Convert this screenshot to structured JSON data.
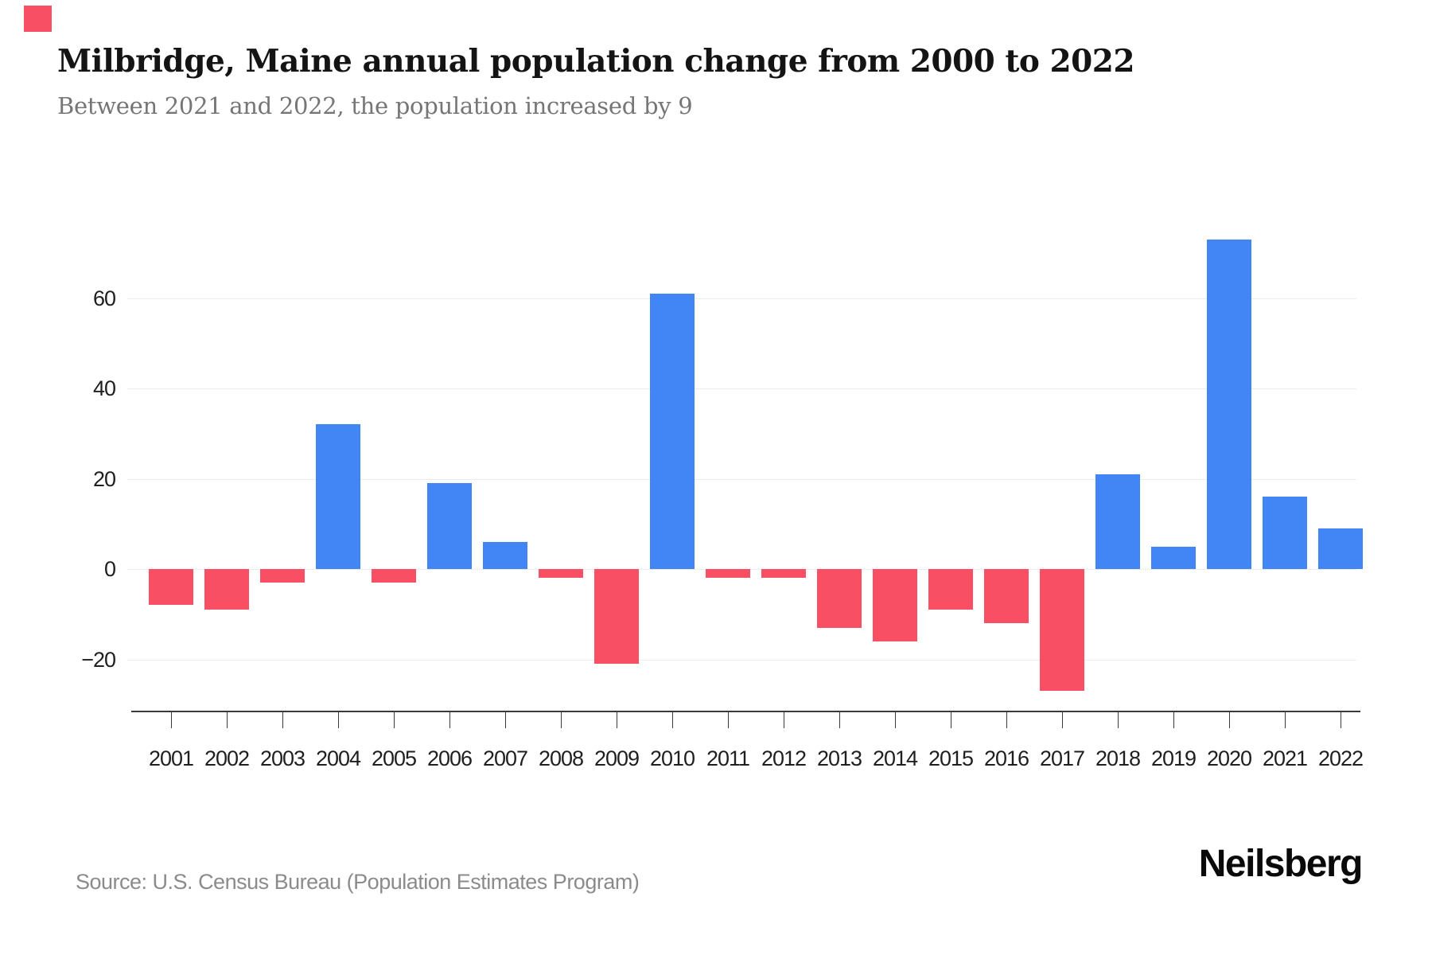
{
  "brand": {
    "logo_text": "Neilsberg",
    "accent_square_color": "#f84f64"
  },
  "header": {
    "title": "Milbridge, Maine annual population change from 2000 to 2022",
    "subtitle": "Between 2021 and 2022, the population increased by 9"
  },
  "source": {
    "text": "Source: U.S. Census Bureau (Population Estimates Program)"
  },
  "chart_data": {
    "type": "bar",
    "title": "Milbridge, Maine annual population change from 2000 to 2022",
    "subtitle": "Between 2021 and 2022, the population increased by 9",
    "xlabel": "",
    "ylabel": "",
    "categories": [
      "2001",
      "2002",
      "2003",
      "2004",
      "2005",
      "2006",
      "2007",
      "2008",
      "2009",
      "2010",
      "2011",
      "2012",
      "2013",
      "2014",
      "2015",
      "2016",
      "2017",
      "2018",
      "2019",
      "2020",
      "2021",
      "2022"
    ],
    "values": [
      -8,
      -9,
      -3,
      32,
      -3,
      19,
      6,
      -2,
      -21,
      61,
      -2,
      -2,
      -13,
      -16,
      -9,
      -12,
      -27,
      21,
      5,
      73,
      16,
      9
    ],
    "positive_color": "#4285f4",
    "negative_color": "#f84f64",
    "yticks": [
      60,
      40,
      20,
      0,
      -20
    ],
    "ytick_labels": [
      "60",
      "40",
      "20",
      "0",
      "−20"
    ],
    "ylim": [
      -32,
      80
    ],
    "grid": true,
    "legend_position": "none"
  }
}
